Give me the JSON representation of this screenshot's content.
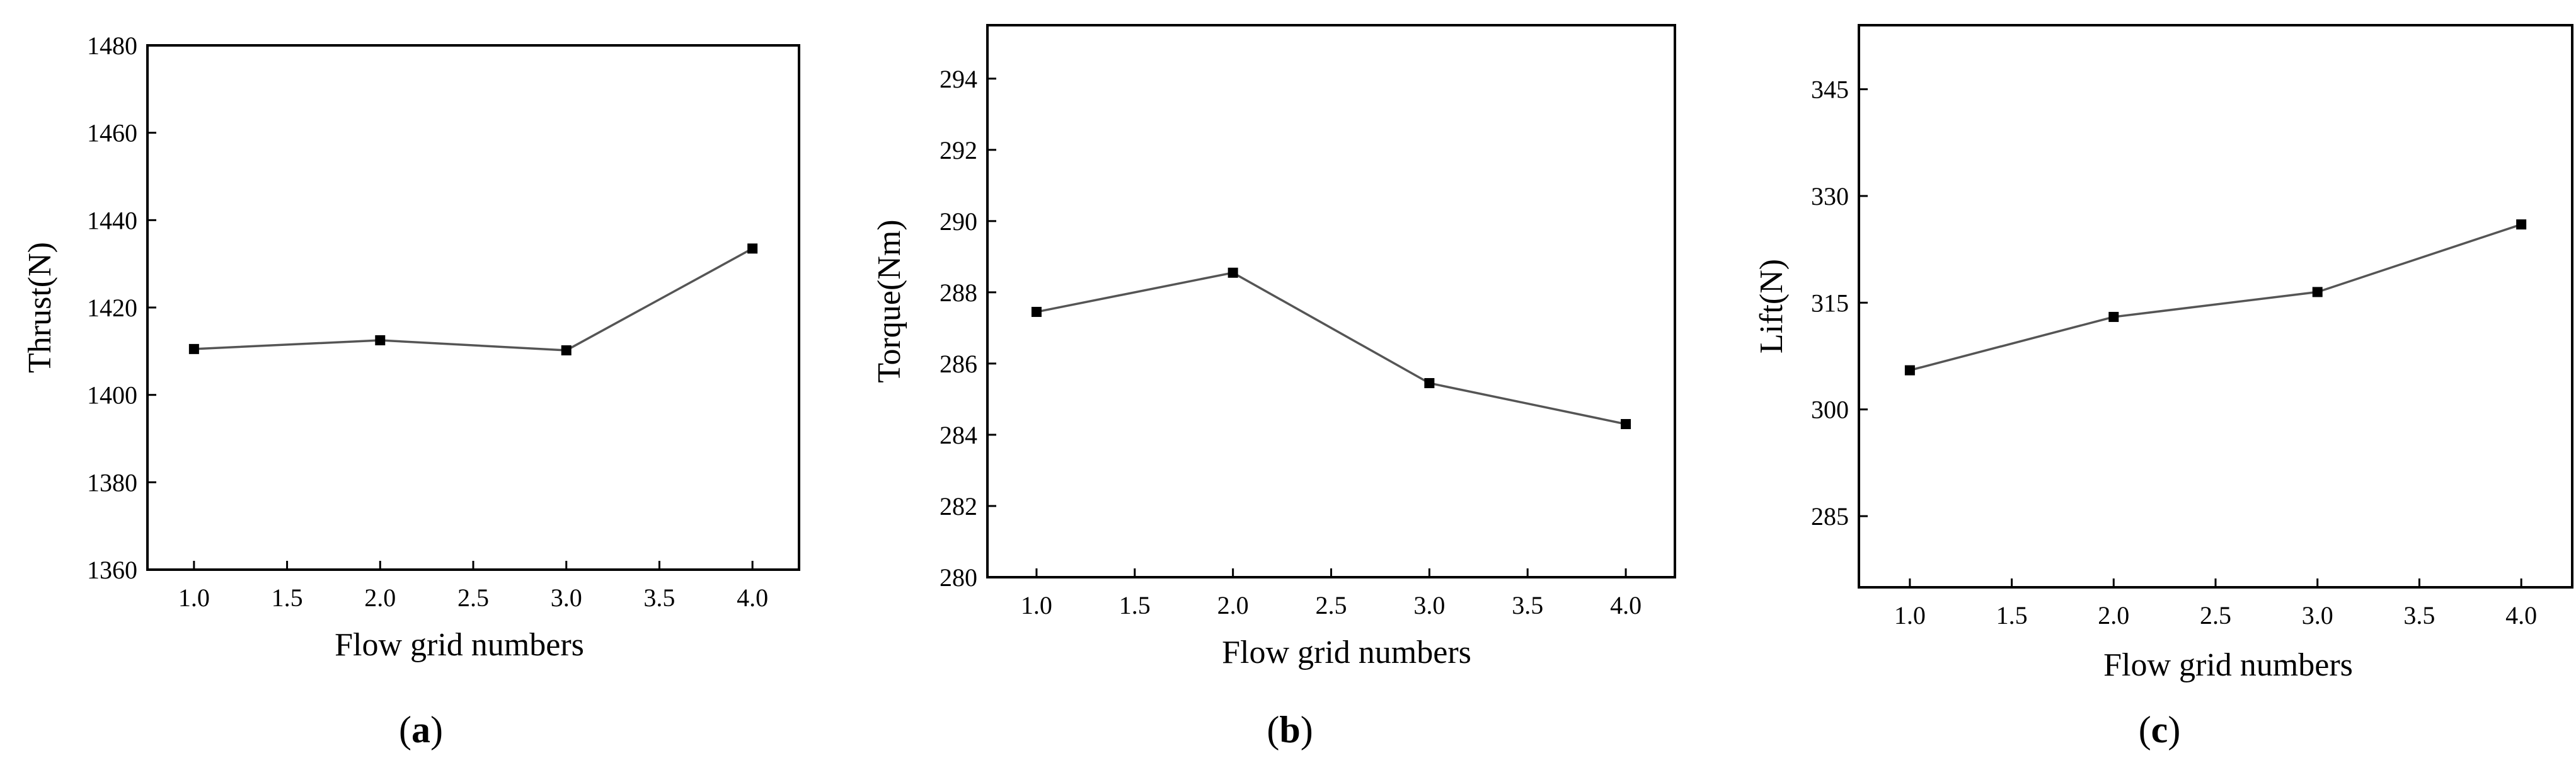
{
  "chart_data": [
    {
      "type": "line",
      "panel_label": "a",
      "x": [
        1.0,
        2.0,
        3.0,
        4.0
      ],
      "y": [
        1410.5,
        1412.5,
        1410.2,
        1433.5
      ],
      "xlabel": "Flow grid numbers",
      "ylabel": "Thrust(N)",
      "xlim": [
        0.75,
        4.25
      ],
      "ylim": [
        1360,
        1480
      ],
      "xticks": [
        "1.0",
        "1.5",
        "2.0",
        "2.5",
        "3.0",
        "3.5",
        "4.0"
      ],
      "yticks": [
        "1360",
        "1380",
        "1400",
        "1420",
        "1440",
        "1460",
        "1480"
      ],
      "grid": false,
      "line_color": "#555555",
      "marker_color": "#000000"
    },
    {
      "type": "line",
      "panel_label": "b",
      "x": [
        1.0,
        2.0,
        3.0,
        4.0
      ],
      "y": [
        287.45,
        288.55,
        285.45,
        284.3
      ],
      "xlabel": "Flow grid numbers",
      "ylabel": "Torque(Nm)",
      "xlim": [
        0.75,
        4.25
      ],
      "ylim": [
        280,
        295.5
      ],
      "xticks": [
        "1.0",
        "1.5",
        "2.0",
        "2.5",
        "3.0",
        "3.5",
        "4.0"
      ],
      "yticks": [
        "280",
        "282",
        "284",
        "286",
        "288",
        "290",
        "292",
        "294"
      ],
      "grid": false,
      "line_color": "#555555",
      "marker_color": "#000000"
    },
    {
      "type": "line",
      "panel_label": "c",
      "x": [
        1.0,
        2.0,
        3.0,
        4.0
      ],
      "y": [
        305.5,
        313.0,
        316.5,
        326.0
      ],
      "xlabel": "Flow grid numbers",
      "ylabel": "Lift(N)",
      "xlim": [
        0.75,
        4.25
      ],
      "ylim": [
        275,
        354
      ],
      "xticks": [
        "1.0",
        "1.5",
        "2.0",
        "2.5",
        "3.0",
        "3.5",
        "4.0"
      ],
      "yticks": [
        "285",
        "300",
        "315",
        "330",
        "345"
      ],
      "grid": false,
      "line_color": "#555555",
      "marker_color": "#000000"
    }
  ]
}
